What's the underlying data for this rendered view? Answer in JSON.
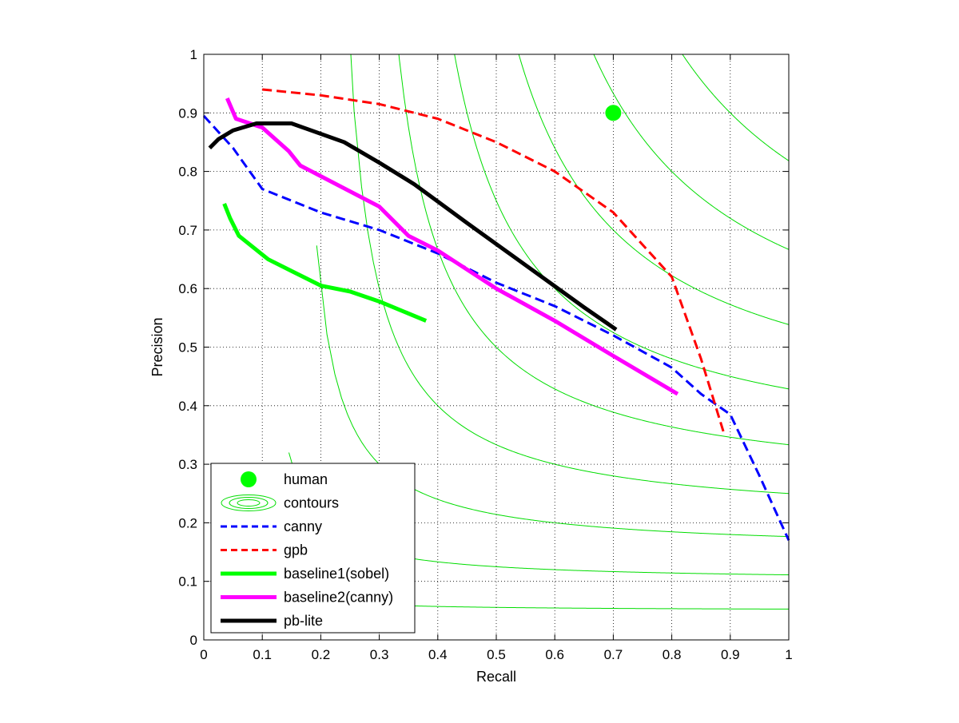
{
  "chart_data": {
    "type": "line",
    "title": "",
    "xlabel": "Recall",
    "ylabel": "Precision",
    "xlim": [
      0,
      1
    ],
    "ylim": [
      0,
      1
    ],
    "xticks": [
      "0",
      "0.1",
      "0.2",
      "0.3",
      "0.4",
      "0.5",
      "0.6",
      "0.7",
      "0.8",
      "0.9",
      "1"
    ],
    "yticks": [
      "0",
      "0.1",
      "0.2",
      "0.3",
      "0.4",
      "0.5",
      "0.6",
      "0.7",
      "0.8",
      "0.9",
      "1"
    ],
    "grid": true,
    "legend_position": "bottom-left",
    "contour_levels": [
      0.1,
      0.2,
      0.3,
      0.4,
      0.5,
      0.6,
      0.7,
      0.8,
      0.9
    ],
    "series": [
      {
        "name": "human",
        "kind": "marker",
        "color": "#00ff00",
        "x": [
          0.7
        ],
        "y": [
          0.9
        ]
      },
      {
        "name": "contours",
        "kind": "contours",
        "color": "#00dd00"
      },
      {
        "name": "canny",
        "kind": "line",
        "style": "dashed",
        "color": "#0000ff",
        "x": [
          0.0,
          0.05,
          0.1,
          0.2,
          0.3,
          0.4,
          0.5,
          0.6,
          0.7,
          0.8,
          0.85,
          0.9,
          0.95,
          1.0
        ],
        "y": [
          0.895,
          0.84,
          0.77,
          0.73,
          0.7,
          0.66,
          0.61,
          0.57,
          0.52,
          0.465,
          0.42,
          0.385,
          0.28,
          0.17
        ]
      },
      {
        "name": "gpb",
        "kind": "line",
        "style": "dashed",
        "color": "#ff0000",
        "x": [
          0.1,
          0.2,
          0.3,
          0.4,
          0.5,
          0.6,
          0.7,
          0.8,
          0.85,
          0.89
        ],
        "y": [
          0.94,
          0.93,
          0.915,
          0.89,
          0.85,
          0.8,
          0.73,
          0.62,
          0.48,
          0.35
        ]
      },
      {
        "name": "baseline1(sobel)",
        "kind": "line",
        "style": "solid",
        "color": "#00ff00",
        "x": [
          0.035,
          0.045,
          0.06,
          0.11,
          0.15,
          0.2,
          0.25,
          0.3,
          0.38
        ],
        "y": [
          0.745,
          0.72,
          0.69,
          0.65,
          0.63,
          0.605,
          0.595,
          0.578,
          0.545
        ]
      },
      {
        "name": "baseline2(canny)",
        "kind": "line",
        "style": "solid",
        "color": "#ff00ff",
        "x": [
          0.04,
          0.055,
          0.1,
          0.145,
          0.165,
          0.3,
          0.35,
          0.4,
          0.5,
          0.6,
          0.7,
          0.81
        ],
        "y": [
          0.925,
          0.89,
          0.875,
          0.835,
          0.81,
          0.74,
          0.69,
          0.665,
          0.6,
          0.545,
          0.485,
          0.42
        ]
      },
      {
        "name": "pb-lite",
        "kind": "line",
        "style": "solid",
        "color": "#000000",
        "x": [
          0.01,
          0.025,
          0.05,
          0.09,
          0.15,
          0.24,
          0.3,
          0.36,
          0.45,
          0.55,
          0.65,
          0.705
        ],
        "y": [
          0.84,
          0.855,
          0.87,
          0.882,
          0.882,
          0.85,
          0.815,
          0.778,
          0.712,
          0.64,
          0.568,
          0.53
        ]
      }
    ]
  }
}
